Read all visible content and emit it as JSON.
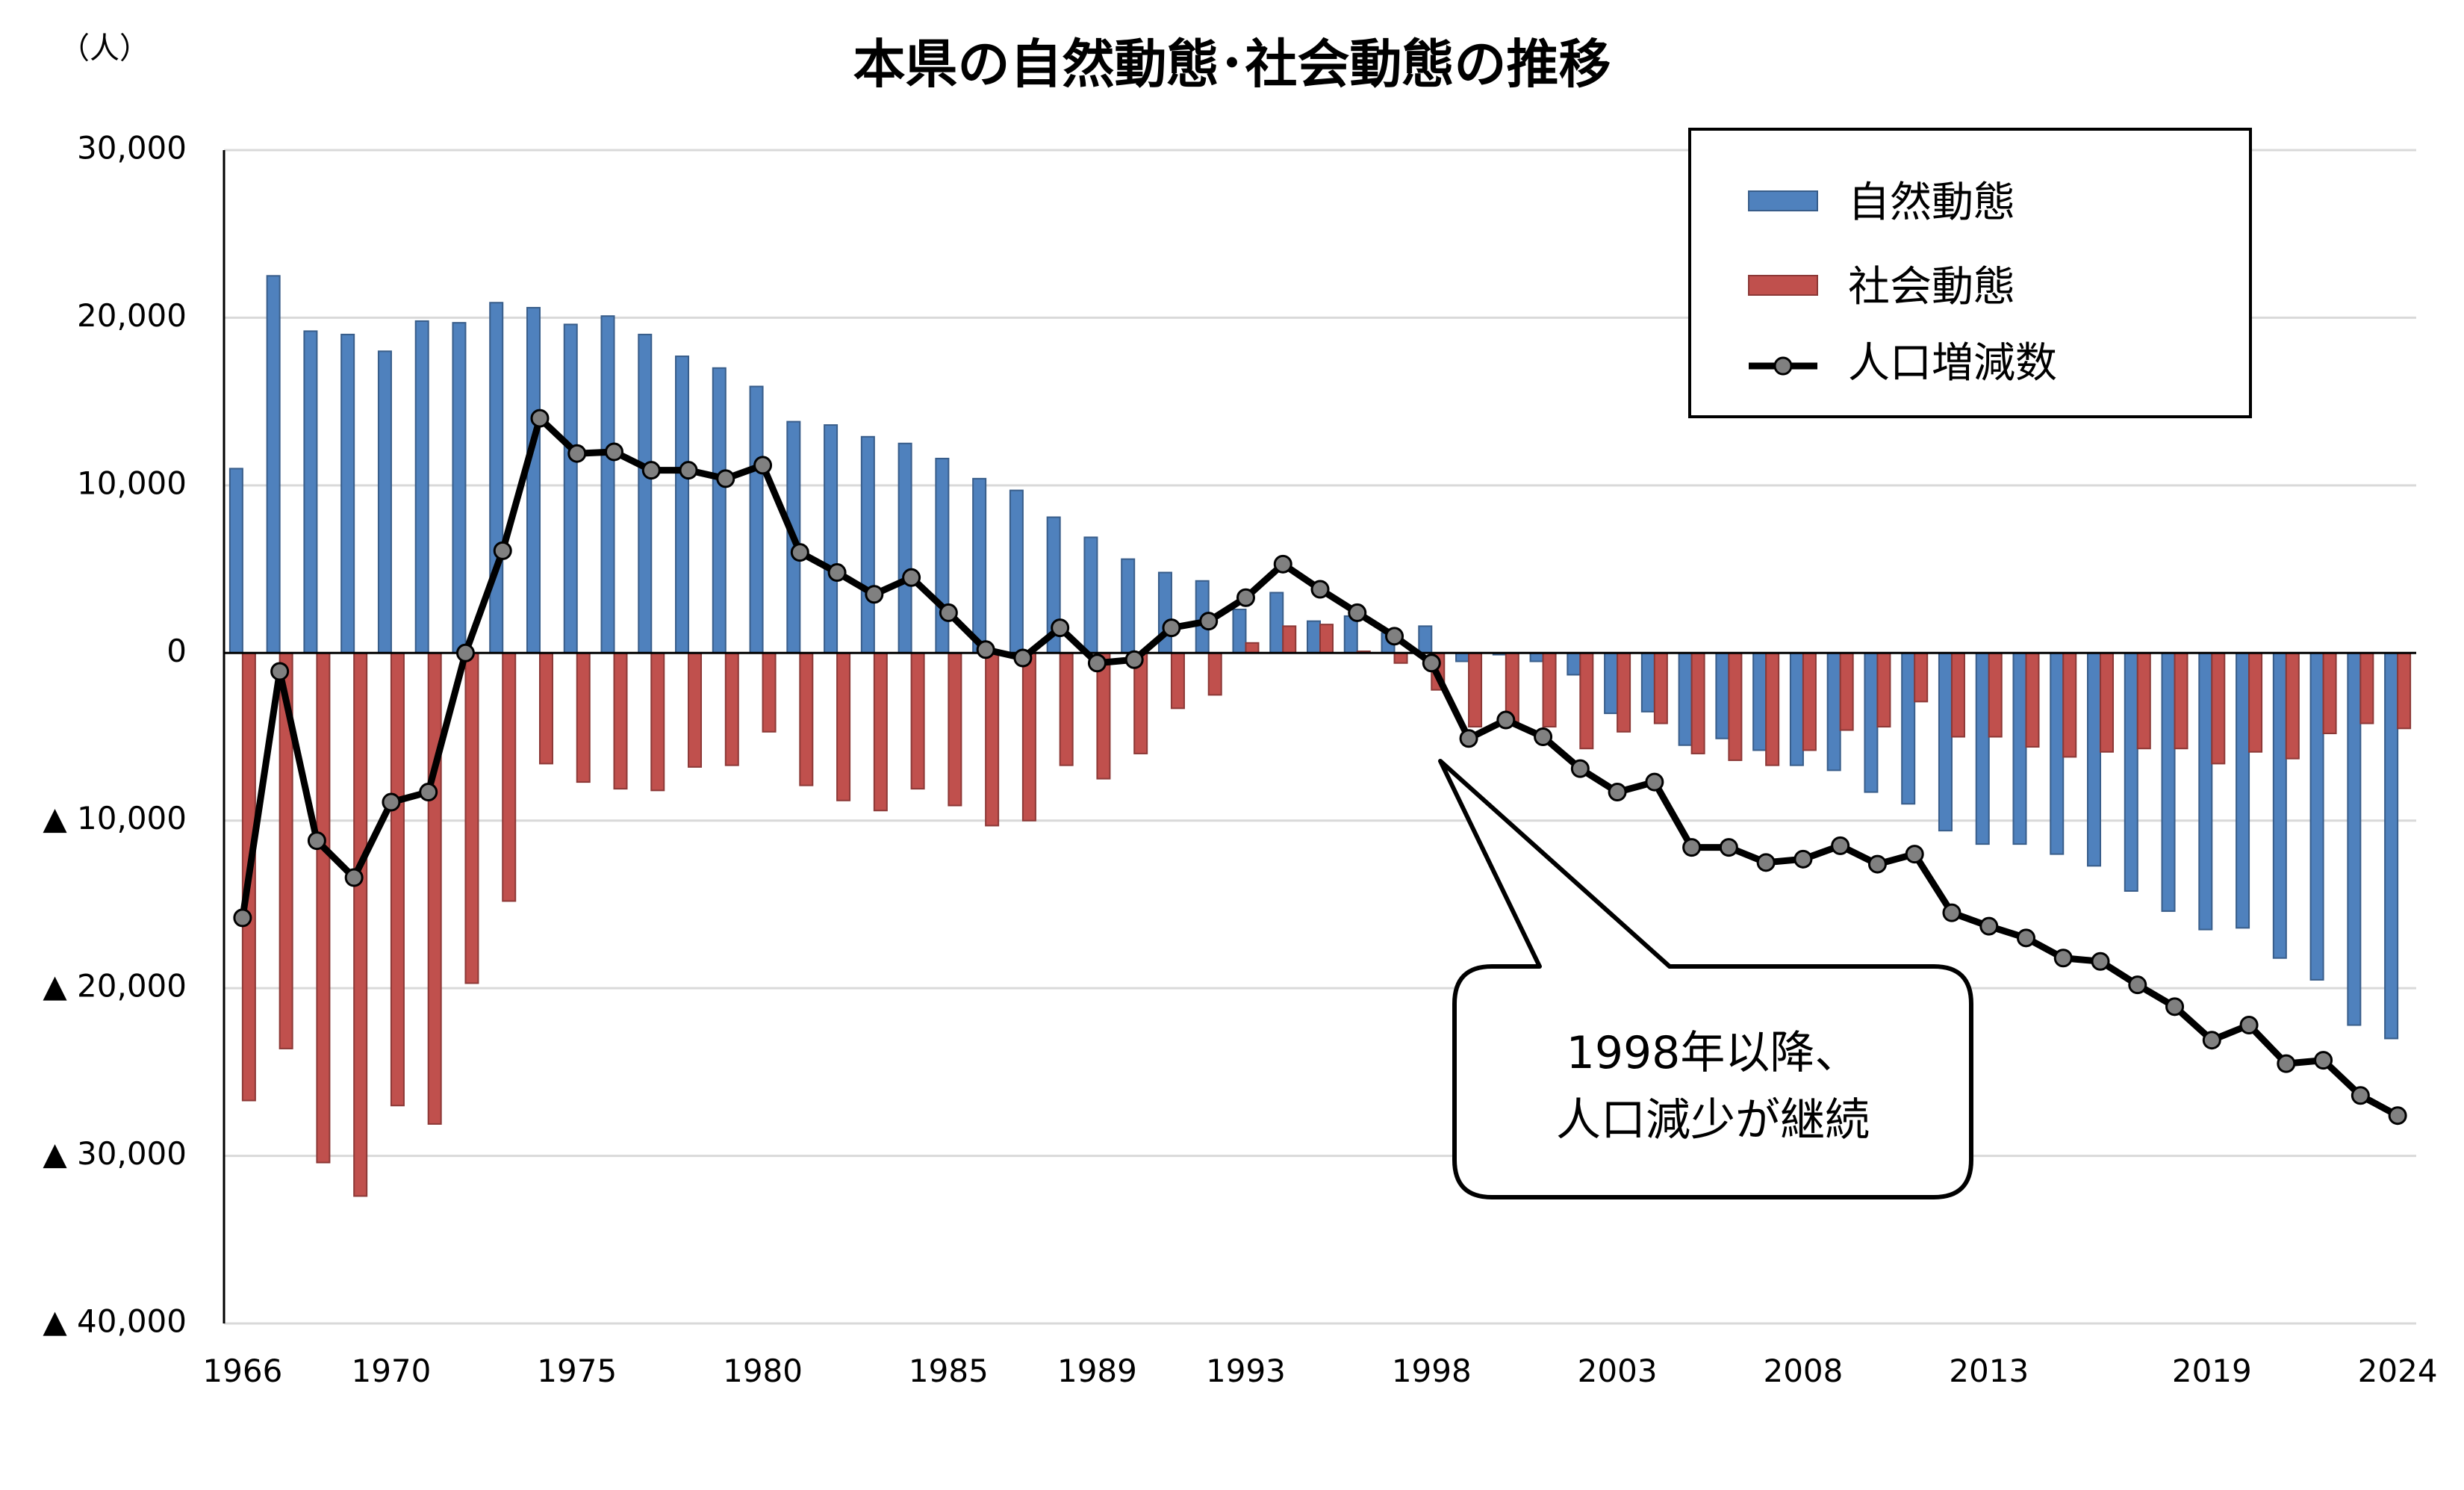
{
  "chart_data": {
    "type": "bar+line",
    "title": "本県の自然動態･社会動態の推移",
    "ylabel": "（人）",
    "ylim": [
      -40000,
      30000
    ],
    "yticks": [
      30000,
      20000,
      10000,
      0,
      -10000,
      -20000,
      -30000,
      -40000
    ],
    "ytick_labels": [
      "30,000",
      "20,000",
      "10,000",
      "0",
      "▲ 10,000",
      "▲ 20,000",
      "▲ 30,000",
      "▲ 40,000"
    ],
    "xtick_labels": [
      "1966",
      "1970",
      "1975",
      "1980",
      "1985",
      "1989",
      "1993",
      "1998",
      "2003",
      "2008",
      "2013",
      "2019",
      "2024"
    ],
    "grid": true,
    "legend_position": "top-right",
    "categories": [
      1966,
      1967,
      1968,
      1969,
      1970,
      1971,
      1972,
      1973,
      1974,
      1975,
      1976,
      1977,
      1978,
      1979,
      1980,
      1981,
      1982,
      1983,
      1984,
      1985,
      1986,
      1987,
      1988,
      1989,
      1990,
      1991,
      1992,
      1993,
      1994,
      1995,
      1996,
      1997,
      1998,
      1999,
      2000,
      2001,
      2002,
      2003,
      2004,
      2005,
      2006,
      2007,
      2008,
      2009,
      2010,
      2011,
      2012,
      2013,
      2014,
      2015,
      2016,
      2017,
      2018,
      2019,
      2020,
      2021,
      2022,
      2023,
      2024
    ],
    "series": [
      {
        "name": "自然動態",
        "type": "bar",
        "color": "#4F81BD",
        "values": [
          11000,
          22500,
          19200,
          19000,
          18000,
          19800,
          19700,
          20900,
          20600,
          19600,
          20100,
          19000,
          17700,
          17000,
          15900,
          13800,
          13600,
          12900,
          12500,
          11600,
          10400,
          9700,
          8100,
          6900,
          5600,
          4800,
          4300,
          2600,
          3600,
          1900,
          2200,
          1200,
          1600,
          -500,
          -100,
          -500,
          -1300,
          -3600,
          -3500,
          -5500,
          -5100,
          -5800,
          -6700,
          -7000,
          -8300,
          -9000,
          -10600,
          -11400,
          -11400,
          -12000,
          -12700,
          -14200,
          -15400,
          -16500,
          -16400,
          -18200,
          -19500,
          -22200,
          -23000
        ]
      },
      {
        "name": "社会動態",
        "type": "bar",
        "color": "#C0504D",
        "values": [
          -26700,
          -23600,
          -30400,
          -32400,
          -27000,
          -28100,
          -19700,
          -14800,
          -6600,
          -7700,
          -8100,
          -8200,
          -6800,
          -6700,
          -4700,
          -7900,
          -8800,
          -9400,
          -8100,
          -9100,
          -10300,
          -10000,
          -6700,
          -7500,
          -6000,
          -3300,
          -2500,
          600,
          1600,
          1700,
          100,
          -600,
          -2200,
          -4400,
          -4200,
          -4400,
          -5700,
          -4700,
          -4200,
          -6000,
          -6400,
          -6700,
          -5800,
          -4600,
          -4400,
          -2900,
          -5000,
          -5000,
          -5600,
          -6200,
          -5900,
          -5700,
          -5700,
          -6600,
          -5900,
          -6300,
          -4800,
          -4200,
          -4500
        ]
      },
      {
        "name": "人口増減数",
        "type": "line",
        "color": "#000000",
        "marker_color": "#808080",
        "values": [
          -15800,
          -1100,
          -11200,
          -13400,
          -8900,
          -8300,
          0,
          6100,
          14000,
          11900,
          12000,
          10900,
          10900,
          10400,
          11200,
          6000,
          4800,
          3500,
          4500,
          2400,
          200,
          -300,
          1500,
          -600,
          -400,
          1500,
          1900,
          3300,
          5300,
          3800,
          2400,
          1000,
          -600,
          -5100,
          -4000,
          -5000,
          -6900,
          -8300,
          -7700,
          -11600,
          -11600,
          -12500,
          -12300,
          -11500,
          -12600,
          -12000,
          -15500,
          -16300,
          -17000,
          -18200,
          -18400,
          -19800,
          -21100,
          -23100,
          -22200,
          -24500,
          -24300,
          -26400,
          -27600
        ]
      }
    ],
    "annotation": {
      "line1": "1998年以降、",
      "line2": "人口減少が継続"
    }
  }
}
